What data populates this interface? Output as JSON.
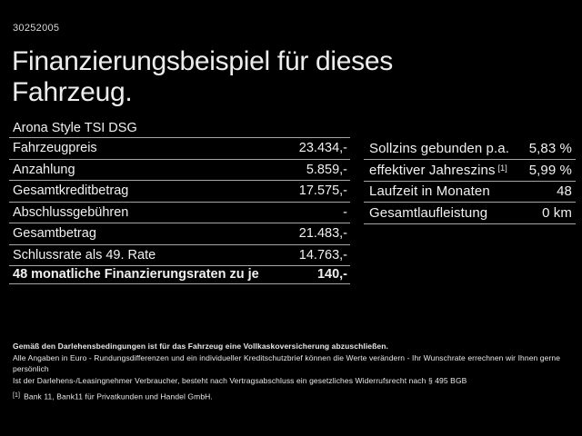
{
  "header": {
    "reference_number": "30252005",
    "title_line1": "Finanzierungsbeispiel für dieses",
    "title_line2": "Fahrzeug."
  },
  "vehicle": {
    "model": "Arona Style TSI DSG"
  },
  "finance_table": {
    "rows": [
      {
        "label": "Fahrzeugpreis",
        "value": "23.434,-"
      },
      {
        "label": "Anzahlung",
        "value": "5.859,-"
      },
      {
        "label": "Gesamtkreditbetrag",
        "value": "17.575,-"
      },
      {
        "label": "Abschlussgebühren",
        "value": "-"
      },
      {
        "label": "Gesamtbetrag",
        "value": "21.483,-"
      },
      {
        "label": "Schlussrate als 49. Rate",
        "value": "14.763,-"
      },
      {
        "label": "48 monatliche Finanzierungsraten zu je",
        "value": "140,-"
      }
    ]
  },
  "conditions_table": {
    "rows": [
      {
        "label": "Sollzins gebunden p.a.",
        "value": "5,83 %"
      },
      {
        "label": "effektiver Jahreszins",
        "footnote_marker": "[1]",
        "value": "5,99 %"
      },
      {
        "label": "Laufzeit in Monaten",
        "value": "48"
      },
      {
        "label": "Gesamtlaufleistung",
        "value": "0 km"
      }
    ]
  },
  "fineprint": {
    "line1": "Gemäß den Darlehensbedingungen ist für das Fahrzeug eine Vollkaskoversicherung abzuschließen.",
    "line2": "Alle Angaben in Euro - Rundungsdifferenzen und ein individueller Kreditschutzbrief können die Werte verändern - Ihr Wunschrate errechnen wir Ihnen gerne persönlich",
    "line3": "Ist der Darlehens-/Leasingnehmer Verbraucher, besteht nach Vertragsabschluss ein gesetzliches Widerrufsrecht nach § 495 BGB",
    "footnote_marker": "[1]",
    "footnote_text": "Bank 11, Bank11 für Privatkunden und Handel GmbH."
  },
  "colors": {
    "background": "#000000",
    "text": "#f1f1f1",
    "divider": "#a6a6a6"
  }
}
